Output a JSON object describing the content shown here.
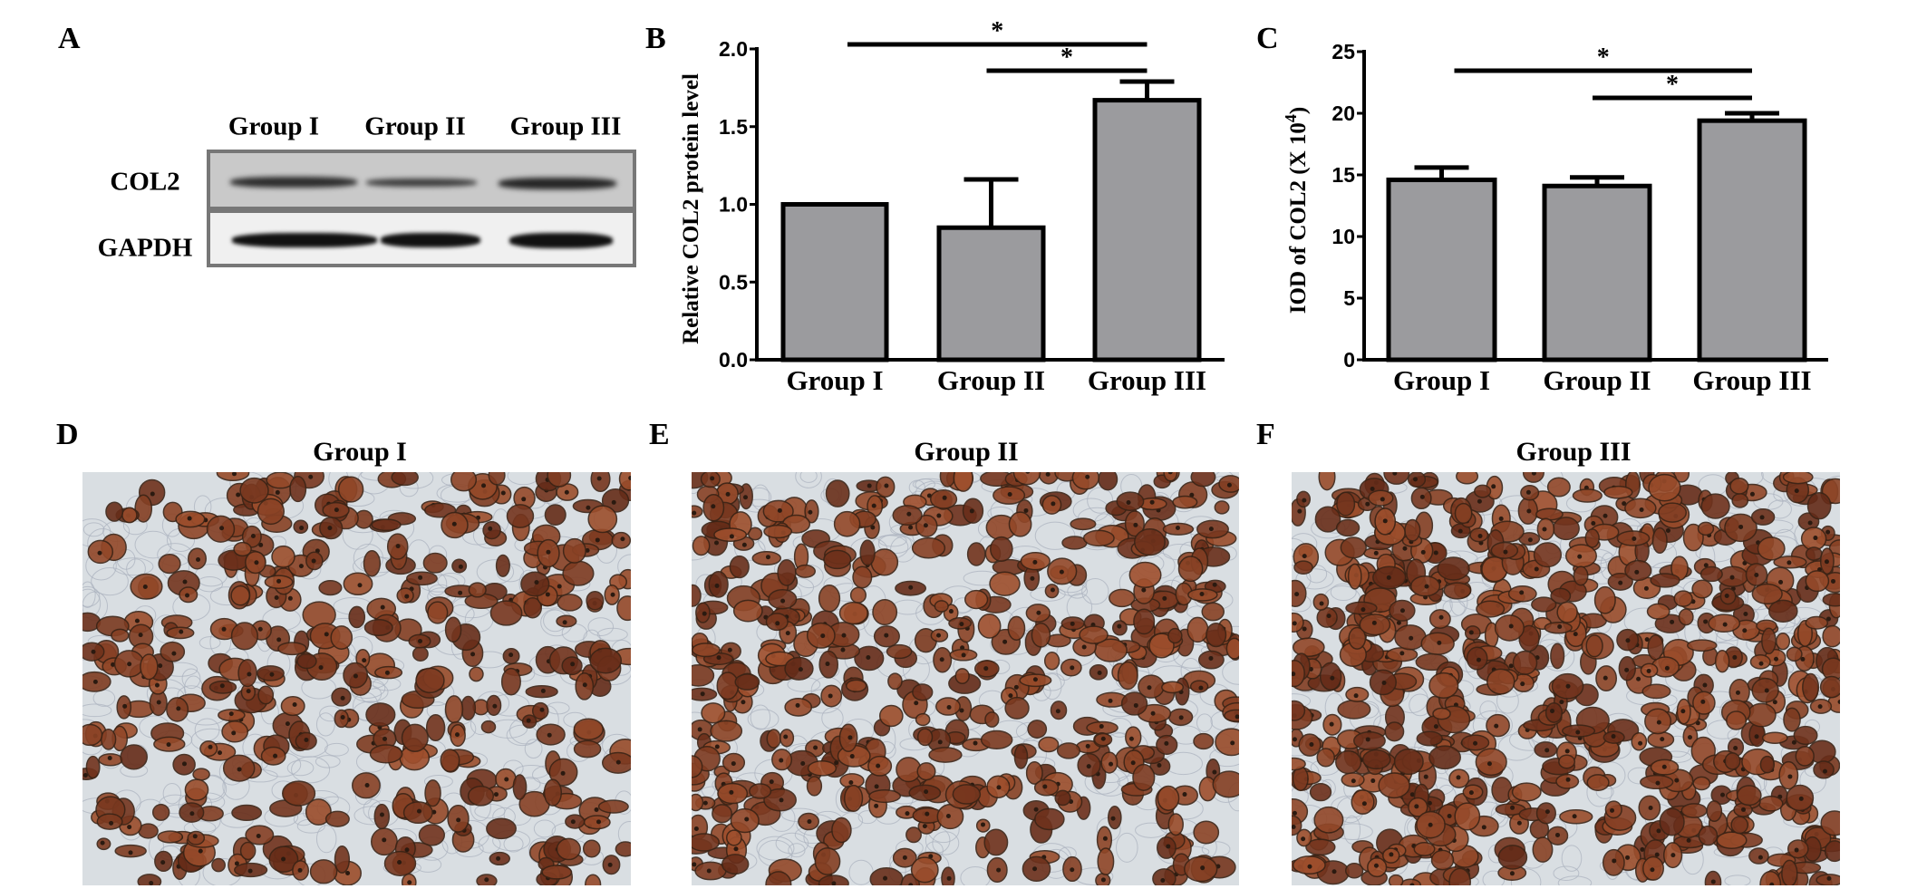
{
  "panels": {
    "A": "A",
    "B": "B",
    "C": "C",
    "D": "D",
    "E": "E",
    "F": "F"
  },
  "western_blot": {
    "lanes": [
      "Group I",
      "Group II",
      "Group III"
    ],
    "rows": [
      "COL2",
      "GAPDH"
    ]
  },
  "chart_data": [
    {
      "panel": "B",
      "type": "bar",
      "categories": [
        "Group I",
        "Group II",
        "Group III"
      ],
      "values": [
        1.0,
        0.85,
        1.67
      ],
      "error_upper": [
        1.0,
        1.16,
        1.79
      ],
      "ylabel": "Relative COL2 protein level",
      "xlabel": "",
      "ylim": [
        0,
        2.0
      ],
      "yticks": [
        "0.0",
        "0.5",
        "1.0",
        "1.5",
        "2.0"
      ],
      "ytick_values": [
        0,
        0.5,
        1.0,
        1.5,
        2.0
      ],
      "bar_color": "#9b9b9e",
      "significance": [
        {
          "from": "Group I",
          "to": "Group III",
          "label": "*"
        },
        {
          "from": "Group II",
          "to": "Group III",
          "label": "*"
        }
      ],
      "grid": false
    },
    {
      "panel": "C",
      "type": "bar",
      "categories": [
        "Group I",
        "Group II",
        "Group III"
      ],
      "values": [
        14.6,
        14.1,
        19.4
      ],
      "error_upper": [
        15.6,
        14.8,
        20.0
      ],
      "ylabel": "IOD of COL2 (X 10",
      "ylabel_superscript": "4",
      "ylabel_suffix": ")",
      "xlabel": "",
      "ylim": [
        0,
        25
      ],
      "yticks": [
        "0",
        "5",
        "10",
        "15",
        "20",
        "25"
      ],
      "ytick_values": [
        0,
        5,
        10,
        15,
        20,
        25
      ],
      "bar_color": "#9b9b9e",
      "significance": [
        {
          "from": "Group I",
          "to": "Group III",
          "label": "*"
        },
        {
          "from": "Group II",
          "to": "Group III",
          "label": "*"
        }
      ],
      "grid": false
    }
  ],
  "micrographs": [
    {
      "panel": "D",
      "title": "Group I",
      "stain_density": 0.45
    },
    {
      "panel": "E",
      "title": "Group II",
      "stain_density": 0.55
    },
    {
      "panel": "F",
      "title": "Group III",
      "stain_density": 0.75
    }
  ],
  "colors": {
    "stain_brown": "#6b4127",
    "background": "#d9dee2",
    "bar": "#9b9b9e"
  }
}
